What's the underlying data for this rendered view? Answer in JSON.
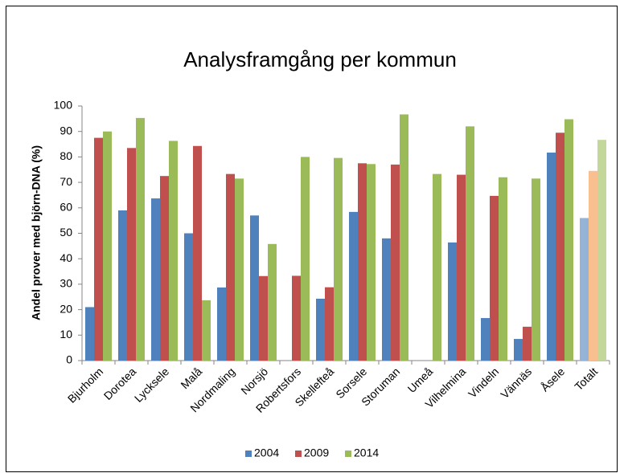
{
  "chart_data": {
    "type": "bar",
    "title": "Analysframgång per kommun",
    "y_label": "Andel prover med björn-DNA (%)",
    "categories": [
      "Bjurholm",
      "Dorotea",
      "Lycksele",
      "Malå",
      "Nordmaling",
      "Norsjö",
      "Robertsfors",
      "Skellefteå",
      "Sorsele",
      "Storuman",
      "Umeå",
      "Vilhelmina",
      "Vindeln",
      "Vännäs",
      "Åsele",
      "Totalt"
    ],
    "series": [
      {
        "name": "2004",
        "color": "#4f81bd",
        "colors": [
          "#4f81bd",
          "#4f81bd",
          "#4f81bd",
          "#4f81bd",
          "#4f81bd",
          "#4f81bd",
          "#4f81bd",
          "#4f81bd",
          "#4f81bd",
          "#4f81bd",
          "#4f81bd",
          "#4f81bd",
          "#4f81bd",
          "#4f81bd",
          "#4f81bd",
          "#95b3d7"
        ],
        "values": [
          21,
          59,
          63.7,
          50,
          28.7,
          57,
          null,
          24.3,
          58.4,
          48,
          null,
          46.4,
          16.7,
          8.5,
          81.7,
          56
        ]
      },
      {
        "name": "2009",
        "color": "#c0504d",
        "colors": [
          "#c0504d",
          "#c0504d",
          "#c0504d",
          "#c0504d",
          "#c0504d",
          "#c0504d",
          "#c0504d",
          "#c0504d",
          "#c0504d",
          "#c0504d",
          "#c0504d",
          "#c0504d",
          "#c0504d",
          "#c0504d",
          "#c0504d",
          "#fabf8f"
        ],
        "values": [
          87.5,
          83.5,
          72.5,
          84.3,
          73.3,
          33.2,
          33.3,
          28.8,
          77.5,
          77,
          null,
          73,
          64.7,
          13.3,
          89.5,
          74.5
        ]
      },
      {
        "name": "2014",
        "color": "#9bbb59",
        "colors": [
          "#9bbb59",
          "#9bbb59",
          "#9bbb59",
          "#9bbb59",
          "#9bbb59",
          "#9bbb59",
          "#9bbb59",
          "#9bbb59",
          "#9bbb59",
          "#9bbb59",
          "#9bbb59",
          "#9bbb59",
          "#9bbb59",
          "#9bbb59",
          "#9bbb59",
          "#c4d79b"
        ],
        "values": [
          90,
          95.3,
          86.3,
          23.7,
          71.5,
          45.8,
          80,
          79.6,
          77.2,
          96.7,
          73.3,
          92,
          72,
          71.5,
          94.8,
          86.7
        ]
      }
    ],
    "ylim": [
      0,
      100
    ],
    "yticks": [
      0,
      10,
      20,
      30,
      40,
      50,
      60,
      70,
      80,
      90,
      100
    ],
    "grid": false,
    "legend": "bottom"
  }
}
